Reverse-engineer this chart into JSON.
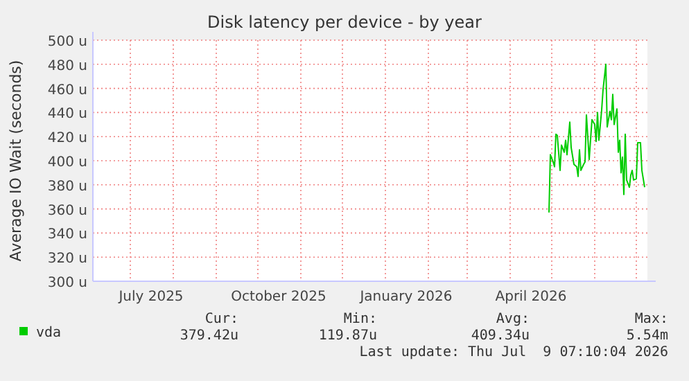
{
  "chart_data": {
    "type": "line",
    "title": "Disk latency per device - by year",
    "ylabel": "Average IO Wait (seconds)",
    "xlim": [
      "2025-06-04",
      "2026-07-09"
    ],
    "xticks": [
      {
        "value": "2025-07-01",
        "label": null
      },
      {
        "value": "2025-07-16",
        "label": "July 2025"
      },
      {
        "value": "2025-08-01",
        "label": null
      },
      {
        "value": "2025-09-01",
        "label": null
      },
      {
        "value": "2025-10-01",
        "label": null
      },
      {
        "value": "2025-10-16",
        "label": "October 2025"
      },
      {
        "value": "2025-11-01",
        "label": null
      },
      {
        "value": "2025-12-01",
        "label": null
      },
      {
        "value": "2026-01-01",
        "label": null
      },
      {
        "value": "2026-01-16",
        "label": "January 2026"
      },
      {
        "value": "2026-02-01",
        "label": null
      },
      {
        "value": "2026-03-01",
        "label": null
      },
      {
        "value": "2026-04-01",
        "label": null
      },
      {
        "value": "2026-04-16",
        "label": "April 2026"
      },
      {
        "value": "2026-05-01",
        "label": null
      },
      {
        "value": "2026-06-01",
        "label": null
      },
      {
        "value": "2026-07-01",
        "label": null
      }
    ],
    "ylim": [
      300,
      500
    ],
    "yticks": [
      {
        "value": 300,
        "label": "300 u"
      },
      {
        "value": 320,
        "label": "320 u"
      },
      {
        "value": 340,
        "label": "340 u"
      },
      {
        "value": 360,
        "label": "360 u"
      },
      {
        "value": 380,
        "label": "380 u"
      },
      {
        "value": 400,
        "label": "400 u"
      },
      {
        "value": 420,
        "label": "420 u"
      },
      {
        "value": 440,
        "label": "440 u"
      },
      {
        "value": 460,
        "label": "460 u"
      },
      {
        "value": 480,
        "label": "480 u"
      },
      {
        "value": 500,
        "label": "500 u"
      }
    ],
    "grid": true,
    "legend": "bottom left",
    "marker": "none",
    "line_style": "solid",
    "series": [
      {
        "name": "vda",
        "color": "#00cc00",
        "x": [
          "2026-04-29",
          "2026-04-30",
          "2026-05-02",
          "2026-05-03",
          "2026-05-04",
          "2026-05-05",
          "2026-05-07",
          "2026-05-08",
          "2026-05-10",
          "2026-05-11",
          "2026-05-12",
          "2026-05-14",
          "2026-05-15",
          "2026-05-17",
          "2026-05-19",
          "2026-05-20",
          "2026-05-21",
          "2026-05-22",
          "2026-05-24",
          "2026-05-25",
          "2026-05-26",
          "2026-05-28",
          "2026-05-30",
          "2026-06-01",
          "2026-06-02",
          "2026-06-03",
          "2026-06-04",
          "2026-06-06",
          "2026-06-07",
          "2026-06-09",
          "2026-06-10",
          "2026-06-12",
          "2026-06-13",
          "2026-06-14",
          "2026-06-15",
          "2026-06-17",
          "2026-06-18",
          "2026-06-19",
          "2026-06-20",
          "2026-06-21",
          "2026-06-22",
          "2026-06-23",
          "2026-06-24",
          "2026-06-26",
          "2026-06-27",
          "2026-06-28",
          "2026-06-29",
          "2026-07-01",
          "2026-07-02",
          "2026-07-04",
          "2026-07-05",
          "2026-07-07"
        ],
        "values": [
          357,
          405,
          399,
          395,
          422,
          421,
          392,
          413,
          407,
          417,
          405,
          432,
          411,
          397,
          395,
          387,
          409,
          392,
          397,
          399,
          438,
          401,
          434,
          430,
          416,
          440,
          417,
          442,
          459,
          480,
          428,
          441,
          434,
          455,
          430,
          443,
          407,
          417,
          390,
          403,
          372,
          422,
          384,
          378,
          388,
          392,
          384,
          385,
          415,
          415,
          392,
          378
        ]
      }
    ],
    "annotations": [
      "Cur:",
      "Min:",
      "Avg:",
      "Max:",
      "379.42u",
      "119.87u",
      "409.34u",
      "5.54m",
      "Last update: Thu Jul  9 07:10:04 2026"
    ]
  }
}
